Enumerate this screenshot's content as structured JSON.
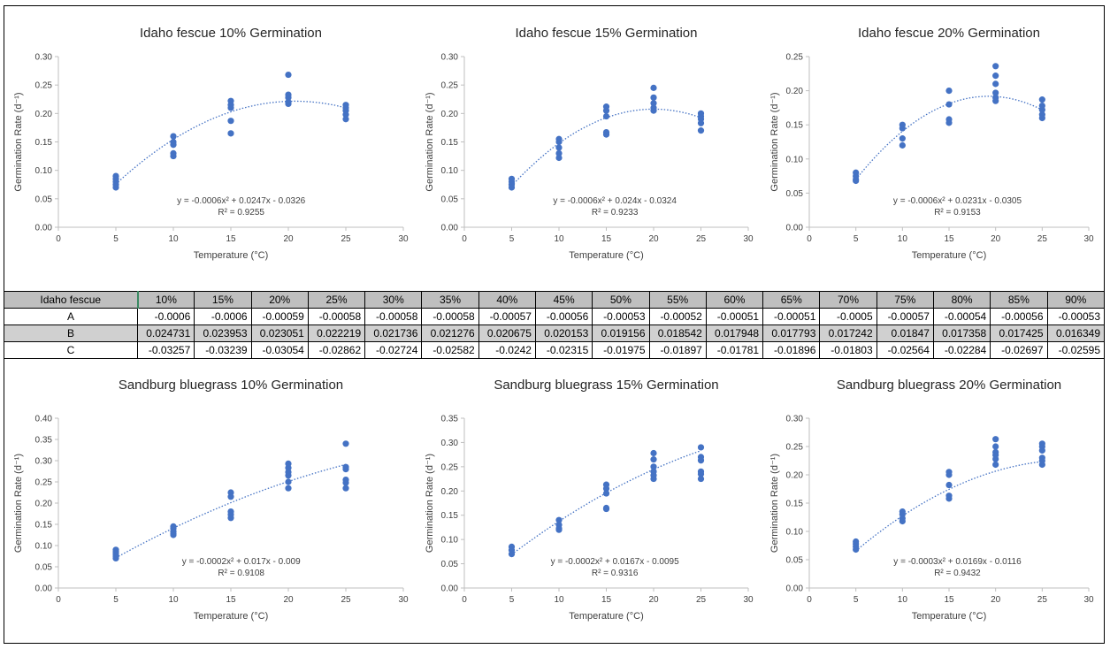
{
  "chart_data": [
    {
      "type": "scatter",
      "title": "Idaho fescue 10% Germination",
      "xlabel": "Temperature (°C)",
      "ylabel": "Germination Rate (d⁻¹)",
      "xlim": [
        0,
        30
      ],
      "ylim": [
        0,
        0.3
      ],
      "xticks": [
        0,
        5,
        10,
        15,
        20,
        25,
        30
      ],
      "yticks": [
        0.0,
        0.05,
        0.1,
        0.15,
        0.2,
        0.25,
        0.3
      ],
      "points": [
        [
          5,
          0.09
        ],
        [
          5,
          0.085
        ],
        [
          5,
          0.08
        ],
        [
          5,
          0.075
        ],
        [
          5,
          0.07
        ],
        [
          10,
          0.16
        ],
        [
          10,
          0.15
        ],
        [
          10,
          0.145
        ],
        [
          10,
          0.13
        ],
        [
          10,
          0.125
        ],
        [
          15,
          0.222
        ],
        [
          15,
          0.215
        ],
        [
          15,
          0.21
        ],
        [
          15,
          0.187
        ],
        [
          15,
          0.165
        ],
        [
          20,
          0.268
        ],
        [
          20,
          0.233
        ],
        [
          20,
          0.228
        ],
        [
          20,
          0.22
        ],
        [
          20,
          0.217
        ],
        [
          25,
          0.215
        ],
        [
          25,
          0.21
        ],
        [
          25,
          0.205
        ],
        [
          25,
          0.198
        ],
        [
          25,
          0.19
        ]
      ],
      "trend": [
        -0.0006,
        0.0247,
        -0.0326
      ],
      "equation": "y = -0.0006x² + 0.0247x - 0.0326",
      "r2": "R² = 0.9255"
    },
    {
      "type": "scatter",
      "title": "Idaho fescue 15% Germination",
      "xlabel": "Temperature (°C)",
      "ylabel": "Germination Rate (d⁻¹)",
      "xlim": [
        0,
        30
      ],
      "ylim": [
        0,
        0.3
      ],
      "xticks": [
        0,
        5,
        10,
        15,
        20,
        25,
        30
      ],
      "yticks": [
        0.0,
        0.05,
        0.1,
        0.15,
        0.2,
        0.25,
        0.3
      ],
      "points": [
        [
          5,
          0.085
        ],
        [
          5,
          0.08
        ],
        [
          5,
          0.075
        ],
        [
          5,
          0.07
        ],
        [
          10,
          0.155
        ],
        [
          10,
          0.15
        ],
        [
          10,
          0.14
        ],
        [
          10,
          0.13
        ],
        [
          10,
          0.122
        ],
        [
          15,
          0.212
        ],
        [
          15,
          0.205
        ],
        [
          15,
          0.195
        ],
        [
          15,
          0.167
        ],
        [
          15,
          0.163
        ],
        [
          20,
          0.245
        ],
        [
          20,
          0.228
        ],
        [
          20,
          0.218
        ],
        [
          20,
          0.21
        ],
        [
          20,
          0.205
        ],
        [
          25,
          0.2
        ],
        [
          25,
          0.195
        ],
        [
          25,
          0.19
        ],
        [
          25,
          0.183
        ],
        [
          25,
          0.17
        ]
      ],
      "trend": [
        -0.0006,
        0.024,
        -0.0324
      ],
      "equation": "y = -0.0006x² + 0.024x - 0.0324",
      "r2": "R² = 0.9233"
    },
    {
      "type": "scatter",
      "title": "Idaho fescue 20% Germination",
      "xlabel": "Temperature (°C)",
      "ylabel": "Germination Rate (d⁻¹)",
      "xlim": [
        0,
        30
      ],
      "ylim": [
        0,
        0.25
      ],
      "xticks": [
        0,
        5,
        10,
        15,
        20,
        25,
        30
      ],
      "yticks": [
        0.0,
        0.05,
        0.1,
        0.15,
        0.2,
        0.25
      ],
      "points": [
        [
          5,
          0.08
        ],
        [
          5,
          0.075
        ],
        [
          5,
          0.07
        ],
        [
          5,
          0.068
        ],
        [
          10,
          0.15
        ],
        [
          10,
          0.145
        ],
        [
          10,
          0.13
        ],
        [
          10,
          0.12
        ],
        [
          15,
          0.2
        ],
        [
          15,
          0.18
        ],
        [
          15,
          0.158
        ],
        [
          15,
          0.153
        ],
        [
          20,
          0.236
        ],
        [
          20,
          0.222
        ],
        [
          20,
          0.21
        ],
        [
          20,
          0.197
        ],
        [
          20,
          0.19
        ],
        [
          20,
          0.185
        ],
        [
          25,
          0.187
        ],
        [
          25,
          0.178
        ],
        [
          25,
          0.172
        ],
        [
          25,
          0.165
        ],
        [
          25,
          0.16
        ]
      ],
      "trend": [
        -0.0006,
        0.0231,
        -0.0305
      ],
      "equation": "y = -0.0006x² + 0.0231x - 0.0305",
      "r2": "R² = 0.9153"
    },
    {
      "type": "scatter",
      "title": "Sandburg bluegrass 10% Germination",
      "xlabel": "Temperature (°C)",
      "ylabel": "Germination Rate (d⁻¹)",
      "xlim": [
        0,
        30
      ],
      "ylim": [
        0,
        0.4
      ],
      "xticks": [
        0,
        5,
        10,
        15,
        20,
        25,
        30
      ],
      "yticks": [
        0.0,
        0.05,
        0.1,
        0.15,
        0.2,
        0.25,
        0.3,
        0.35,
        0.4
      ],
      "points": [
        [
          5,
          0.09
        ],
        [
          5,
          0.085
        ],
        [
          5,
          0.08
        ],
        [
          5,
          0.075
        ],
        [
          5,
          0.07
        ],
        [
          10,
          0.145
        ],
        [
          10,
          0.14
        ],
        [
          10,
          0.133
        ],
        [
          10,
          0.128
        ],
        [
          10,
          0.125
        ],
        [
          15,
          0.225
        ],
        [
          15,
          0.215
        ],
        [
          15,
          0.18
        ],
        [
          15,
          0.173
        ],
        [
          15,
          0.165
        ],
        [
          20,
          0.293
        ],
        [
          20,
          0.283
        ],
        [
          20,
          0.273
        ],
        [
          20,
          0.265
        ],
        [
          20,
          0.25
        ],
        [
          20,
          0.235
        ],
        [
          25,
          0.34
        ],
        [
          25,
          0.285
        ],
        [
          25,
          0.28
        ],
        [
          25,
          0.255
        ],
        [
          25,
          0.248
        ],
        [
          25,
          0.235
        ]
      ],
      "trend": [
        -0.0002,
        0.017,
        -0.009
      ],
      "equation": "y = -0.0002x² + 0.017x - 0.009",
      "r2": "R² = 0.9108"
    },
    {
      "type": "scatter",
      "title": "Sandburg bluegrass 15% Germination",
      "xlabel": "Temperature (°C)",
      "ylabel": "Germination Rate (d⁻¹)",
      "xlim": [
        0,
        30
      ],
      "ylim": [
        0,
        0.35
      ],
      "xticks": [
        0,
        5,
        10,
        15,
        20,
        25,
        30
      ],
      "yticks": [
        0.0,
        0.05,
        0.1,
        0.15,
        0.2,
        0.25,
        0.3,
        0.35
      ],
      "points": [
        [
          5,
          0.085
        ],
        [
          5,
          0.078
        ],
        [
          5,
          0.07
        ],
        [
          10,
          0.14
        ],
        [
          10,
          0.13
        ],
        [
          10,
          0.123
        ],
        [
          10,
          0.12
        ],
        [
          15,
          0.213
        ],
        [
          15,
          0.205
        ],
        [
          15,
          0.195
        ],
        [
          15,
          0.165
        ],
        [
          15,
          0.163
        ],
        [
          20,
          0.278
        ],
        [
          20,
          0.265
        ],
        [
          20,
          0.25
        ],
        [
          20,
          0.24
        ],
        [
          20,
          0.232
        ],
        [
          20,
          0.225
        ],
        [
          25,
          0.29
        ],
        [
          25,
          0.27
        ],
        [
          25,
          0.263
        ],
        [
          25,
          0.24
        ],
        [
          25,
          0.235
        ],
        [
          25,
          0.225
        ]
      ],
      "trend": [
        -0.0002,
        0.0167,
        -0.0095
      ],
      "equation": "y = -0.0002x² + 0.0167x - 0.0095",
      "r2": "R² = 0.9316"
    },
    {
      "type": "scatter",
      "title": "Sandburg bluegrass 20% Germination",
      "xlabel": "Temperature (°C)",
      "ylabel": "Germination Rate (d⁻¹)",
      "xlim": [
        0,
        30
      ],
      "ylim": [
        0,
        0.3
      ],
      "xticks": [
        0,
        5,
        10,
        15,
        20,
        25,
        30
      ],
      "yticks": [
        0.0,
        0.05,
        0.1,
        0.15,
        0.2,
        0.25,
        0.3
      ],
      "points": [
        [
          5,
          0.082
        ],
        [
          5,
          0.078
        ],
        [
          5,
          0.073
        ],
        [
          5,
          0.068
        ],
        [
          10,
          0.135
        ],
        [
          10,
          0.13
        ],
        [
          10,
          0.123
        ],
        [
          10,
          0.118
        ],
        [
          15,
          0.205
        ],
        [
          15,
          0.2
        ],
        [
          15,
          0.182
        ],
        [
          15,
          0.163
        ],
        [
          15,
          0.158
        ],
        [
          20,
          0.263
        ],
        [
          20,
          0.25
        ],
        [
          20,
          0.24
        ],
        [
          20,
          0.235
        ],
        [
          20,
          0.228
        ],
        [
          20,
          0.218
        ],
        [
          25,
          0.255
        ],
        [
          25,
          0.25
        ],
        [
          25,
          0.243
        ],
        [
          25,
          0.23
        ],
        [
          25,
          0.225
        ],
        [
          25,
          0.218
        ]
      ],
      "trend": [
        -0.0003,
        0.0169,
        -0.0116
      ],
      "equation": "y = -0.0003x² + 0.0169x - 0.0116",
      "r2": "R² = 0.9432"
    }
  ],
  "table": {
    "header": [
      "Idaho fescue",
      "10%",
      "15%",
      "20%",
      "25%",
      "30%",
      "35%",
      "40%",
      "45%",
      "50%",
      "55%",
      "60%",
      "65%",
      "70%",
      "75%",
      "80%",
      "85%",
      "90%"
    ],
    "rows": [
      [
        "A",
        "-0.0006",
        "-0.0006",
        "-0.00059",
        "-0.00058",
        "-0.00058",
        "-0.00058",
        "-0.00057",
        "-0.00056",
        "-0.00053",
        "-0.00052",
        "-0.00051",
        "-0.00051",
        "-0.0005",
        "-0.00057",
        "-0.00054",
        "-0.00056",
        "-0.00053"
      ],
      [
        "B",
        "0.024731",
        "0.023953",
        "0.023051",
        "0.022219",
        "0.021736",
        "0.021276",
        "0.020675",
        "0.020153",
        "0.019156",
        "0.018542",
        "0.017948",
        "0.017793",
        "0.017242",
        "0.01847",
        "0.017358",
        "0.017425",
        "0.016349"
      ],
      [
        "C",
        "-0.03257",
        "-0.03239",
        "-0.03054",
        "-0.02862",
        "-0.02724",
        "-0.02582",
        "-0.0242",
        "-0.02315",
        "-0.01975",
        "-0.01897",
        "-0.01781",
        "-0.01896",
        "-0.01803",
        "-0.02564",
        "-0.02284",
        "-0.02697",
        "-0.02595"
      ]
    ]
  },
  "colors": {
    "marker": "#4472c4",
    "axis": "#bfbfbf",
    "text": "#404040"
  }
}
